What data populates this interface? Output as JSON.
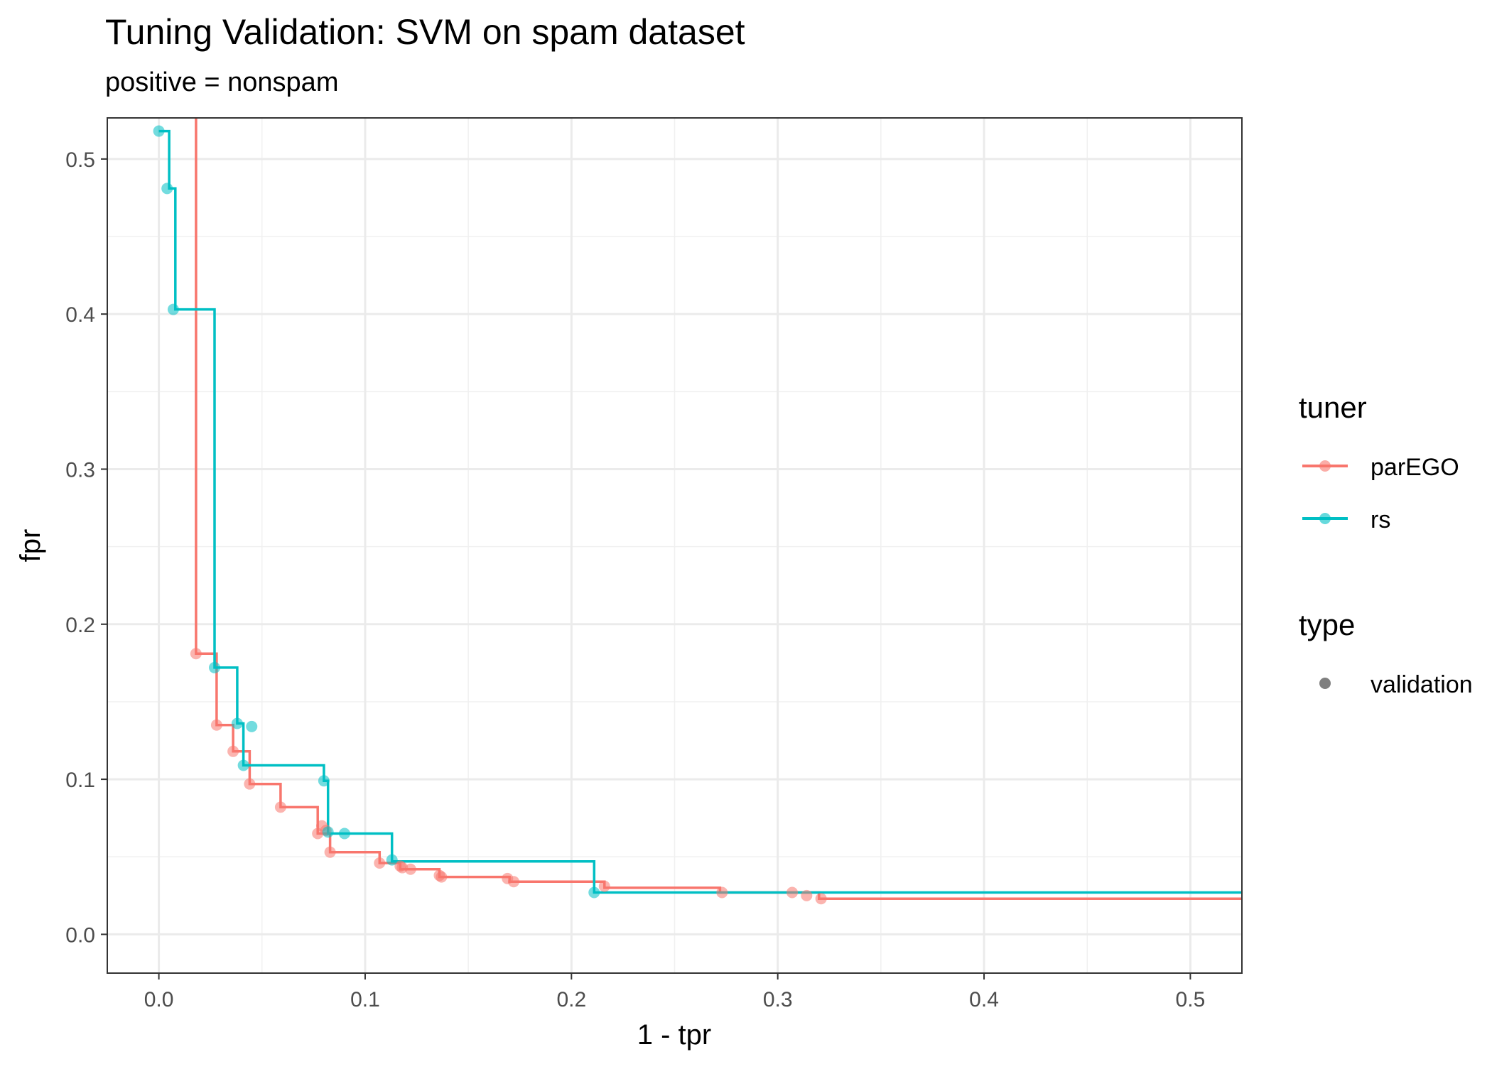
{
  "chart_data": {
    "type": "line",
    "title": "Tuning Validation: SVM on spam dataset",
    "subtitle": "positive = nonspam",
    "xlabel": "1 - tpr",
    "ylabel": "fpr",
    "xlim": [
      -0.025,
      0.525
    ],
    "ylim": [
      -0.025,
      0.5265
    ],
    "x_ticks": [
      0.0,
      0.1,
      0.2,
      0.3,
      0.4,
      0.5
    ],
    "x_tick_labels": [
      "0.0",
      "0.1",
      "0.2",
      "0.3",
      "0.4",
      "0.5"
    ],
    "y_ticks": [
      0.0,
      0.1,
      0.2,
      0.3,
      0.4,
      0.5
    ],
    "y_tick_labels": [
      "0.0",
      "0.1",
      "0.2",
      "0.3",
      "0.4",
      "0.5"
    ],
    "grid": true,
    "legend_position": "right",
    "legend": {
      "tuner_title": "tuner",
      "type_title": "type",
      "type_entries": [
        {
          "label": "validation",
          "color": "#7f7f7f"
        }
      ]
    },
    "series": [
      {
        "name": "parEGO",
        "color": "#F8766D",
        "front": [
          [
            0.018,
            0.53
          ],
          [
            0.018,
            0.181
          ],
          [
            0.028,
            0.181
          ],
          [
            0.028,
            0.135
          ],
          [
            0.036,
            0.135
          ],
          [
            0.036,
            0.118
          ],
          [
            0.044,
            0.118
          ],
          [
            0.044,
            0.097
          ],
          [
            0.059,
            0.097
          ],
          [
            0.059,
            0.082
          ],
          [
            0.077,
            0.082
          ],
          [
            0.077,
            0.065
          ],
          [
            0.083,
            0.065
          ],
          [
            0.083,
            0.053
          ],
          [
            0.107,
            0.053
          ],
          [
            0.107,
            0.046
          ],
          [
            0.117,
            0.046
          ],
          [
            0.117,
            0.042
          ],
          [
            0.136,
            0.042
          ],
          [
            0.136,
            0.037
          ],
          [
            0.17,
            0.037
          ],
          [
            0.17,
            0.034
          ],
          [
            0.216,
            0.034
          ],
          [
            0.216,
            0.03
          ],
          [
            0.272,
            0.03
          ],
          [
            0.272,
            0.027
          ],
          [
            0.32,
            0.027
          ],
          [
            0.32,
            0.023
          ],
          [
            0.525,
            0.023
          ]
        ],
        "points": [
          [
            0.018,
            0.181
          ],
          [
            0.028,
            0.135
          ],
          [
            0.036,
            0.118
          ],
          [
            0.044,
            0.097
          ],
          [
            0.059,
            0.082
          ],
          [
            0.077,
            0.065
          ],
          [
            0.079,
            0.07
          ],
          [
            0.081,
            0.067
          ],
          [
            0.083,
            0.053
          ],
          [
            0.107,
            0.046
          ],
          [
            0.117,
            0.044
          ],
          [
            0.118,
            0.043
          ],
          [
            0.122,
            0.042
          ],
          [
            0.136,
            0.038
          ],
          [
            0.137,
            0.037
          ],
          [
            0.169,
            0.036
          ],
          [
            0.172,
            0.034
          ],
          [
            0.216,
            0.031
          ],
          [
            0.273,
            0.027
          ],
          [
            0.307,
            0.027
          ],
          [
            0.314,
            0.025
          ],
          [
            0.321,
            0.023
          ]
        ]
      },
      {
        "name": "rs",
        "color": "#00BFC4",
        "front": [
          [
            0.0,
            0.518
          ],
          [
            0.005,
            0.518
          ],
          [
            0.005,
            0.481
          ],
          [
            0.008,
            0.481
          ],
          [
            0.008,
            0.403
          ],
          [
            0.027,
            0.403
          ],
          [
            0.027,
            0.172
          ],
          [
            0.038,
            0.172
          ],
          [
            0.038,
            0.136
          ],
          [
            0.041,
            0.136
          ],
          [
            0.041,
            0.109
          ],
          [
            0.08,
            0.109
          ],
          [
            0.08,
            0.099
          ],
          [
            0.082,
            0.099
          ],
          [
            0.082,
            0.065
          ],
          [
            0.113,
            0.065
          ],
          [
            0.113,
            0.047
          ],
          [
            0.211,
            0.047
          ],
          [
            0.211,
            0.027
          ],
          [
            0.525,
            0.027
          ]
        ],
        "points": [
          [
            0.0,
            0.518
          ],
          [
            0.004,
            0.481
          ],
          [
            0.007,
            0.403
          ],
          [
            0.027,
            0.172
          ],
          [
            0.038,
            0.136
          ],
          [
            0.045,
            0.134
          ],
          [
            0.041,
            0.109
          ],
          [
            0.08,
            0.099
          ],
          [
            0.082,
            0.066
          ],
          [
            0.09,
            0.065
          ],
          [
            0.113,
            0.048
          ],
          [
            0.211,
            0.027
          ]
        ]
      }
    ]
  }
}
